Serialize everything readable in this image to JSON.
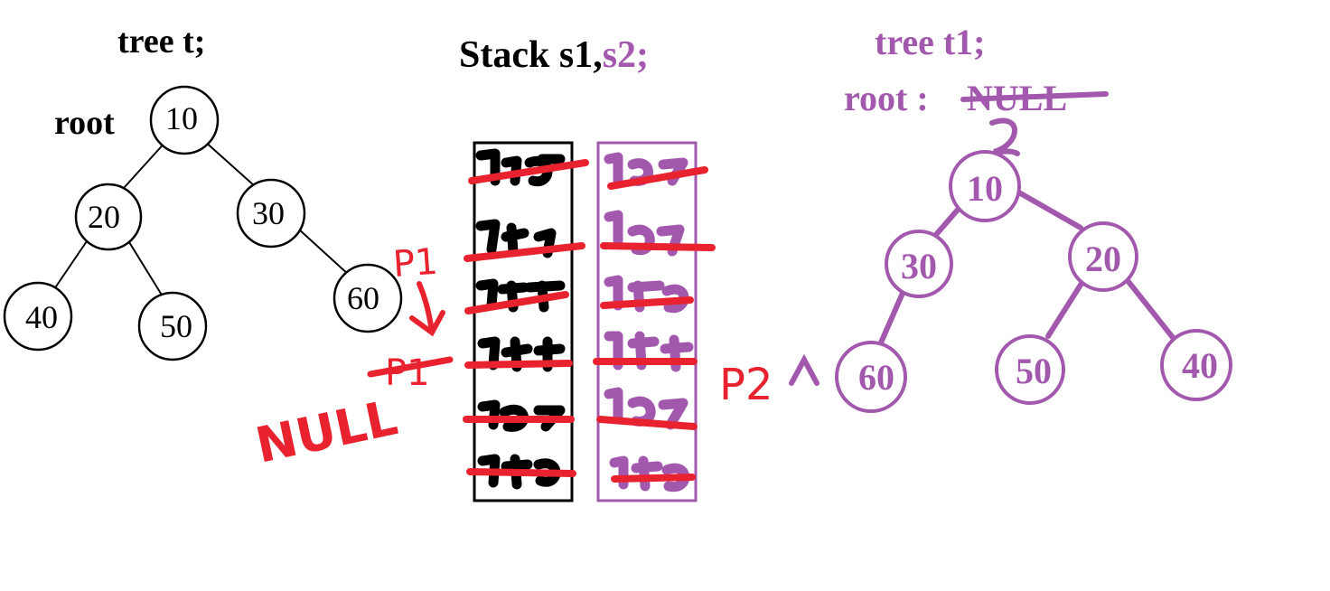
{
  "colors": {
    "black": "#000000",
    "purple": "#a259ad",
    "red": "#e8232f"
  },
  "tree_t": {
    "title": "tree t;",
    "root_label": "root",
    "nodes": [
      {
        "id": "n10",
        "value": "10",
        "parent": null
      },
      {
        "id": "n20",
        "value": "20",
        "parent": "n10"
      },
      {
        "id": "n30",
        "value": "30",
        "parent": "n10"
      },
      {
        "id": "n40",
        "value": "40",
        "parent": "n20"
      },
      {
        "id": "n50",
        "value": "50",
        "parent": "n20"
      },
      {
        "id": "n60",
        "value": "60",
        "parent": "n30"
      }
    ]
  },
  "stacks": {
    "title_s1": "Stack s1,",
    "title_s2": "s2;",
    "s1_entries_crossed": 6,
    "s2_entries_crossed": 6
  },
  "pointers": {
    "p1_label": "P1",
    "p1_value": "NULL",
    "p2_label": "P2"
  },
  "tree_t1": {
    "title": "tree t1;",
    "root_label": "root :",
    "root_old_value": "NULL",
    "nodes": [
      {
        "id": "m10",
        "value": "10",
        "parent": null
      },
      {
        "id": "m30",
        "value": "30",
        "parent": "m10"
      },
      {
        "id": "m20",
        "value": "20",
        "parent": "m10"
      },
      {
        "id": "m60",
        "value": "60",
        "parent": "m30"
      },
      {
        "id": "m50",
        "value": "50",
        "parent": "m20"
      },
      {
        "id": "m40",
        "value": "40",
        "parent": "m20"
      }
    ]
  }
}
